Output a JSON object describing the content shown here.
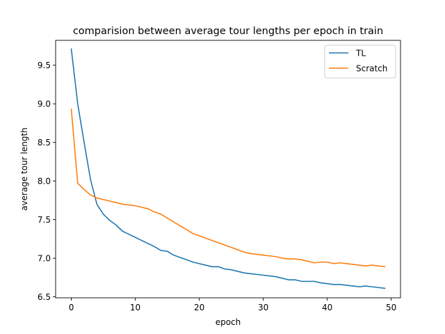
{
  "chart_data": {
    "type": "line",
    "title": "comparision between average tour lengths per epoch in train",
    "xlabel": "epoch",
    "ylabel": "average tour length",
    "xlim": [
      -2.45,
      51.45
    ],
    "ylim": [
      6.487,
      9.822
    ],
    "xticks": [
      0,
      10,
      20,
      30,
      40,
      50
    ],
    "yticks": [
      6.5,
      7.0,
      7.5,
      8.0,
      8.5,
      9.0,
      9.5
    ],
    "ytick_labels": [
      "6.5",
      "7.0",
      "7.5",
      "8.0",
      "8.5",
      "9.0",
      "9.5"
    ],
    "grid": false,
    "legend_position": "top-right",
    "x": [
      0,
      1,
      2,
      3,
      4,
      5,
      6,
      7,
      8,
      9,
      10,
      11,
      12,
      13,
      14,
      15,
      16,
      17,
      18,
      19,
      20,
      21,
      22,
      23,
      24,
      25,
      26,
      27,
      28,
      29,
      30,
      31,
      32,
      33,
      34,
      35,
      36,
      37,
      38,
      39,
      40,
      41,
      42,
      43,
      44,
      45,
      46,
      47,
      48,
      49
    ],
    "series": [
      {
        "name": "TL",
        "color": "#1f77b4",
        "values": [
          9.71,
          9.0,
          8.5,
          8.02,
          7.7,
          7.57,
          7.49,
          7.43,
          7.35,
          7.31,
          7.27,
          7.23,
          7.19,
          7.15,
          7.1,
          7.09,
          7.04,
          7.01,
          6.98,
          6.95,
          6.93,
          6.91,
          6.89,
          6.89,
          6.86,
          6.85,
          6.83,
          6.81,
          6.8,
          6.79,
          6.78,
          6.77,
          6.76,
          6.74,
          6.72,
          6.72,
          6.7,
          6.7,
          6.7,
          6.68,
          6.67,
          6.66,
          6.66,
          6.65,
          6.64,
          6.63,
          6.64,
          6.63,
          6.62,
          6.61
        ]
      },
      {
        "name": "Scratch",
        "color": "#ff7f0e",
        "values": [
          8.93,
          7.97,
          7.89,
          7.82,
          7.78,
          7.76,
          7.74,
          7.72,
          7.7,
          7.69,
          7.68,
          7.66,
          7.64,
          7.6,
          7.57,
          7.52,
          7.47,
          7.42,
          7.37,
          7.32,
          7.29,
          7.26,
          7.23,
          7.2,
          7.17,
          7.14,
          7.11,
          7.08,
          7.06,
          7.05,
          7.04,
          7.03,
          7.02,
          7.0,
          6.99,
          6.99,
          6.98,
          6.96,
          6.94,
          6.95,
          6.95,
          6.93,
          6.94,
          6.93,
          6.92,
          6.91,
          6.9,
          6.91,
          6.9,
          6.89
        ]
      }
    ]
  }
}
